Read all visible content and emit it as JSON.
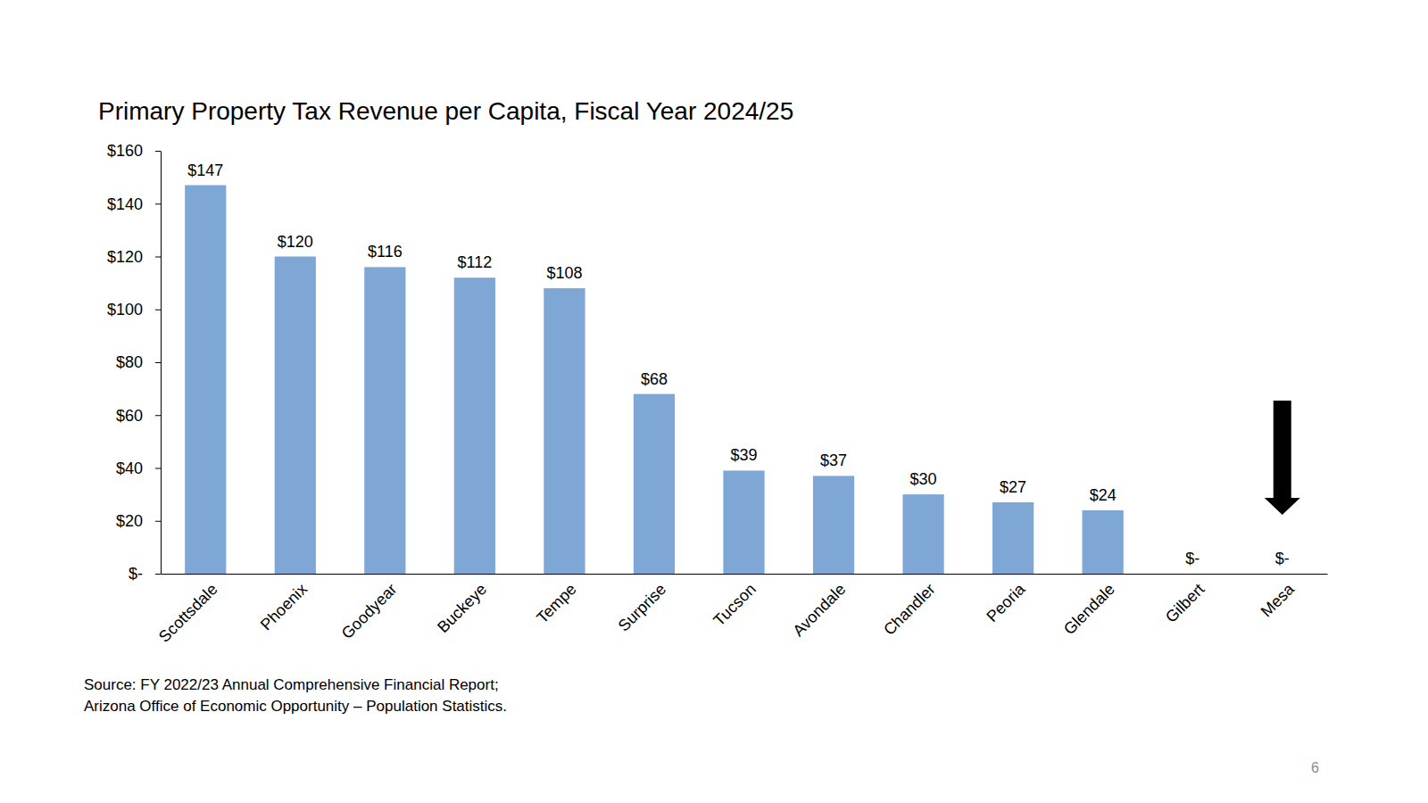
{
  "chart_data": {
    "type": "bar",
    "title": "Primary Property Tax Revenue per Capita, Fiscal Year 2024/25",
    "categories": [
      "Scottsdale",
      "Phoenix",
      "Goodyear",
      "Buckeye",
      "Tempe",
      "Surprise",
      "Tucson",
      "Avondale",
      "Chandler",
      "Peoria",
      "Glendale",
      "Gilbert",
      "Mesa"
    ],
    "values": [
      147,
      120,
      116,
      112,
      108,
      68,
      39,
      37,
      30,
      27,
      24,
      0,
      0
    ],
    "value_labels": [
      "$147",
      "$120",
      "$116",
      "$112",
      "$108",
      "$68",
      "$39",
      "$37",
      "$30",
      "$27",
      "$24",
      "$-",
      "$-"
    ],
    "color": "#7fa7d6",
    "ylim": [
      0,
      160
    ],
    "yticks": [
      {
        "value": 0,
        "label": "$-"
      },
      {
        "value": 20,
        "label": "$20"
      },
      {
        "value": 40,
        "label": "$40"
      },
      {
        "value": 60,
        "label": "$60"
      },
      {
        "value": 80,
        "label": "$80"
      },
      {
        "value": 100,
        "label": "$100"
      },
      {
        "value": 120,
        "label": "$120"
      },
      {
        "value": 140,
        "label": "$140"
      },
      {
        "value": 160,
        "label": "$160"
      }
    ],
    "grid": false,
    "data_labels": true,
    "annotations": [
      "Source: FY 2022/23 Annual Comprehensive Financial Report;",
      "Arizona Office of Economic Opportunity – Population Statistics.",
      "6"
    ]
  }
}
